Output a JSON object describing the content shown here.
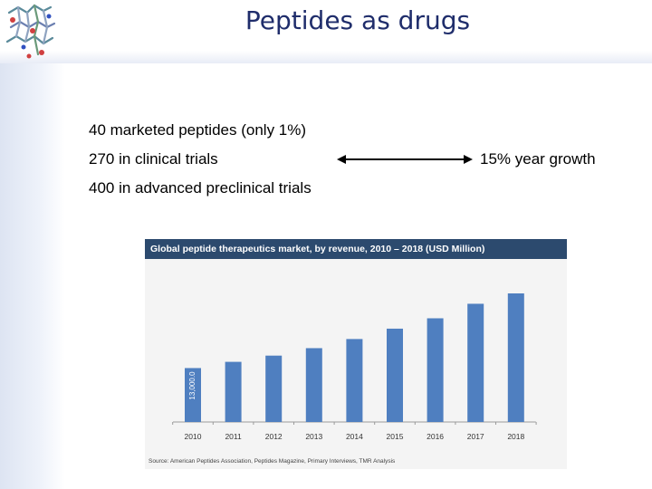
{
  "slide": {
    "title": "Peptides as drugs",
    "bullets": [
      "40 marketed peptides (only 1%)",
      "270 in clinical trials",
      "400 in advanced preclinical trials"
    ],
    "growth_label": "15% year growth"
  },
  "chart_data": {
    "type": "bar",
    "title": "Global peptide therapeutics market, by revenue, 2010 – 2018 (USD Million)",
    "categories": [
      "2010",
      "2011",
      "2012",
      "2013",
      "2014",
      "2015",
      "2016",
      "2017",
      "2018"
    ],
    "values": [
      13000,
      14500,
      16000,
      17800,
      20000,
      22500,
      25000,
      28500,
      31000
    ],
    "data_labels": [
      "13,000.0"
    ],
    "bar_color": "#4f7fc0",
    "grid": false,
    "legend": "none",
    "source": "Source: American Peptides Association, Peptides Magazine, Primary Interviews, TMR Analysis"
  },
  "colors": {
    "title": "#1f2d6b",
    "chart_header_bg": "#2c4a6e",
    "bar": "#4f7fc0"
  }
}
